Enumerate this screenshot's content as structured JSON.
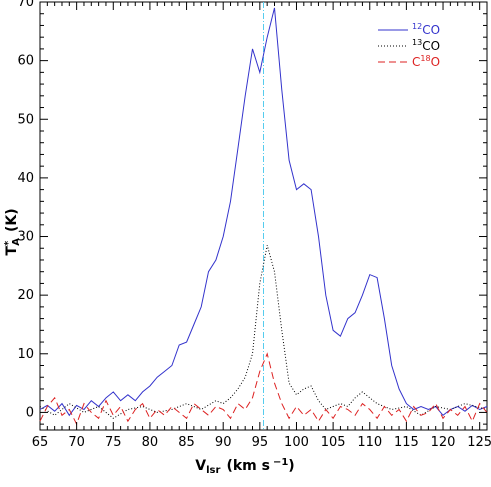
{
  "chart_data": {
    "type": "line",
    "xlabel": "V",
    "xlabel_sub": "lsr",
    "xlabel_unit": "(km s",
    "xlabel_unit_sup": "−1",
    "xlabel_unit_end": ")",
    "ylabel": "T",
    "ylabel_sup": "*",
    "ylabel_sub": "A",
    "ylabel_unit": "(K)",
    "xlim": [
      65,
      126
    ],
    "ylim": [
      -3,
      70
    ],
    "xticks": [
      65,
      70,
      75,
      80,
      85,
      90,
      95,
      100,
      105,
      110,
      115,
      120,
      125
    ],
    "yticks": [
      0,
      10,
      20,
      30,
      40,
      50,
      60,
      70
    ],
    "vline": 95.5,
    "vline_color": "#55ccee",
    "legend_position": "top-right",
    "series": [
      {
        "name_sup": "12",
        "name": "CO",
        "color": "#3333cc",
        "style": "solid",
        "x": [
          65,
          66,
          67,
          68,
          69,
          70,
          71,
          72,
          73,
          74,
          75,
          76,
          77,
          78,
          79,
          80,
          81,
          82,
          83,
          84,
          85,
          86,
          87,
          88,
          89,
          90,
          91,
          92,
          93,
          94,
          95,
          96,
          97,
          98,
          99,
          100,
          101,
          102,
          103,
          104,
          105,
          106,
          107,
          108,
          109,
          110,
          111,
          112,
          113,
          114,
          115,
          116,
          117,
          118,
          119,
          120,
          121,
          122,
          123,
          124,
          125,
          126
        ],
        "y": [
          0.5,
          1.2,
          0.2,
          1.5,
          -0.5,
          1.2,
          0.5,
          2.0,
          1.0,
          2.5,
          3.5,
          2.0,
          3.0,
          2.0,
          3.5,
          4.5,
          6.0,
          7.0,
          8.0,
          11.5,
          12.0,
          15.0,
          18.0,
          24.0,
          26.0,
          30.0,
          36.0,
          45.0,
          54.0,
          62.0,
          58.0,
          64.0,
          69.0,
          55.0,
          43.0,
          38.0,
          39.0,
          38.0,
          30.0,
          20.0,
          14.0,
          13.0,
          16.0,
          17.0,
          20.0,
          23.5,
          23.0,
          16.0,
          8.0,
          4.0,
          1.5,
          0.5,
          1.0,
          0.5,
          1.0,
          -0.5,
          0.5,
          1.0,
          0.2,
          1.2,
          0.5,
          1.0
        ]
      },
      {
        "name_sup": "13",
        "name": "CO",
        "color": "#000000",
        "style": "dotted",
        "x": [
          65,
          67,
          69,
          71,
          73,
          75,
          77,
          79,
          81,
          83,
          85,
          87,
          89,
          90,
          91,
          92,
          93,
          94,
          95,
          96,
          97,
          98,
          99,
          100,
          101,
          102,
          103,
          104,
          105,
          106,
          107,
          108,
          109,
          110,
          111,
          113,
          115,
          117,
          119,
          121,
          123,
          126
        ],
        "y": [
          1.0,
          -0.5,
          1.5,
          0.0,
          1.0,
          -1.0,
          0.5,
          1.0,
          0.0,
          0.5,
          1.5,
          0.5,
          2.0,
          1.5,
          2.5,
          4.0,
          6.0,
          10.0,
          22.0,
          28.5,
          24.0,
          14.0,
          5.0,
          3.0,
          4.0,
          4.5,
          2.0,
          0.5,
          1.0,
          1.5,
          1.0,
          2.5,
          3.5,
          2.5,
          1.5,
          0.5,
          1.0,
          -0.5,
          1.0,
          0.5,
          1.5,
          0.5
        ]
      },
      {
        "name_sup": "18",
        "name_pre": "C",
        "name": "O",
        "color": "#dd2222",
        "style": "dashed",
        "x": [
          65,
          66,
          67,
          68,
          69,
          70,
          71,
          72,
          73,
          74,
          75,
          76,
          77,
          78,
          79,
          80,
          81,
          82,
          83,
          84,
          85,
          86,
          87,
          88,
          89,
          90,
          91,
          92,
          93,
          94,
          95,
          96,
          97,
          98,
          99,
          100,
          101,
          102,
          103,
          104,
          105,
          106,
          107,
          108,
          109,
          110,
          111,
          112,
          113,
          114,
          115,
          116,
          117,
          118,
          119,
          120,
          121,
          122,
          123,
          124,
          125,
          126
        ],
        "y": [
          -1.5,
          1.0,
          2.5,
          -0.5,
          0.5,
          -2.0,
          1.5,
          0.0,
          -1.0,
          2.0,
          -0.5,
          1.0,
          -1.5,
          0.5,
          1.5,
          -1.0,
          0.5,
          -0.5,
          1.0,
          0.0,
          -1.0,
          1.5,
          0.5,
          -0.5,
          1.0,
          0.5,
          -1.0,
          1.5,
          0.5,
          2.5,
          7.0,
          10.0,
          5.0,
          1.5,
          -1.0,
          1.0,
          -0.5,
          0.5,
          -1.5,
          0.5,
          -1.0,
          1.0,
          0.5,
          -0.5,
          1.5,
          0.5,
          -1.0,
          1.0,
          -0.5,
          0.5,
          -1.5,
          1.0,
          -0.5,
          0.0,
          1.5,
          -1.0,
          0.5,
          -0.5,
          1.0,
          -1.5,
          1.5,
          0.0
        ]
      }
    ]
  }
}
